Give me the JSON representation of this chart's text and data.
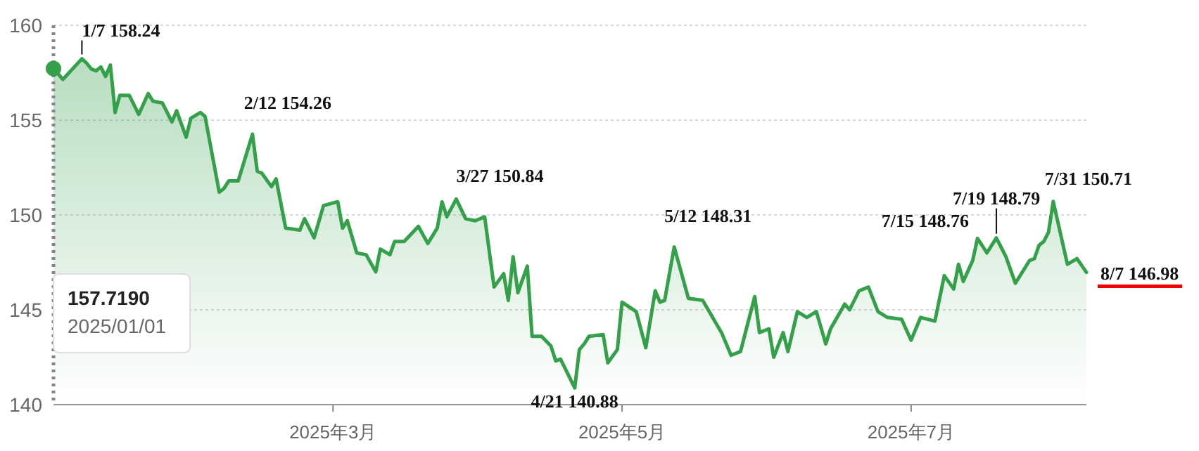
{
  "chart_data": {
    "type": "area",
    "x": [
      "2025-01-01",
      "2025-01-03",
      "2025-01-07",
      "2025-01-08",
      "2025-01-09",
      "2025-01-10",
      "2025-01-11",
      "2025-01-12",
      "2025-01-13",
      "2025-01-14",
      "2025-01-15",
      "2025-01-17",
      "2025-01-19",
      "2025-01-21",
      "2025-01-22",
      "2025-01-24",
      "2025-01-26",
      "2025-01-27",
      "2025-01-29",
      "2025-01-30",
      "2025-02-01",
      "2025-02-02",
      "2025-02-05",
      "2025-02-06",
      "2025-02-07",
      "2025-02-09",
      "2025-02-12",
      "2025-02-13",
      "2025-02-14",
      "2025-02-16",
      "2025-02-17",
      "2025-02-19",
      "2025-02-22",
      "2025-02-23",
      "2025-02-25",
      "2025-02-27",
      "2025-03-02",
      "2025-03-03",
      "2025-03-04",
      "2025-03-06",
      "2025-03-08",
      "2025-03-10",
      "2025-03-11",
      "2025-03-13",
      "2025-03-14",
      "2025-03-16",
      "2025-03-19",
      "2025-03-21",
      "2025-03-23",
      "2025-03-24",
      "2025-03-25",
      "2025-03-27",
      "2025-03-29",
      "2025-03-31",
      "2025-04-02",
      "2025-04-04",
      "2025-04-06",
      "2025-04-07",
      "2025-04-08",
      "2025-04-09",
      "2025-04-11",
      "2025-04-12",
      "2025-04-14",
      "2025-04-16",
      "2025-04-17",
      "2025-04-18",
      "2025-04-21",
      "2025-04-22",
      "2025-04-23",
      "2025-04-24",
      "2025-04-27",
      "2025-04-28",
      "2025-04-30",
      "2025-05-01",
      "2025-05-04",
      "2025-05-06",
      "2025-05-08",
      "2025-05-09",
      "2025-05-10",
      "2025-05-12",
      "2025-05-15",
      "2025-05-18",
      "2025-05-22",
      "2025-05-24",
      "2025-05-26",
      "2025-05-29",
      "2025-05-30",
      "2025-06-01",
      "2025-06-02",
      "2025-06-04",
      "2025-06-05",
      "2025-06-07",
      "2025-06-09",
      "2025-06-11",
      "2025-06-13",
      "2025-06-14",
      "2025-06-17",
      "2025-06-18",
      "2025-06-20",
      "2025-06-22",
      "2025-06-24",
      "2025-06-26",
      "2025-06-29",
      "2025-07-01",
      "2025-07-03",
      "2025-07-06",
      "2025-07-08",
      "2025-07-10",
      "2025-07-11",
      "2025-07-12",
      "2025-07-14",
      "2025-07-15",
      "2025-07-17",
      "2025-07-19",
      "2025-07-21",
      "2025-07-23",
      "2025-07-26",
      "2025-07-27",
      "2025-07-28",
      "2025-07-29",
      "2025-07-30",
      "2025-07-31",
      "2025-08-03",
      "2025-08-05",
      "2025-08-07"
    ],
    "series": [
      {
        "color": "#34a04a",
        "values": [
          157.719,
          157.15,
          158.24,
          158.0,
          157.7,
          157.6,
          157.8,
          157.3,
          157.9,
          155.4,
          156.3,
          156.3,
          155.3,
          156.4,
          156.0,
          155.9,
          154.9,
          155.5,
          154.1,
          155.1,
          155.4,
          155.2,
          151.2,
          151.4,
          151.8,
          151.8,
          154.26,
          152.3,
          152.2,
          151.5,
          151.9,
          149.3,
          149.2,
          149.8,
          148.8,
          150.5,
          150.7,
          149.3,
          149.7,
          148.0,
          147.9,
          147.0,
          148.2,
          147.9,
          148.6,
          148.6,
          149.4,
          148.5,
          149.3,
          150.7,
          149.9,
          150.84,
          149.8,
          149.7,
          149.9,
          146.2,
          146.9,
          145.5,
          147.8,
          145.9,
          147.3,
          143.6,
          143.6,
          143.1,
          142.3,
          142.4,
          140.88,
          142.9,
          143.2,
          143.6,
          143.7,
          142.2,
          142.9,
          145.4,
          144.9,
          143.0,
          146.0,
          145.4,
          145.5,
          148.31,
          145.6,
          145.5,
          143.8,
          142.6,
          142.8,
          145.7,
          143.8,
          144.0,
          142.5,
          143.8,
          142.8,
          144.9,
          144.6,
          144.9,
          143.2,
          144.0,
          145.3,
          145.0,
          146.0,
          146.2,
          144.9,
          144.6,
          144.5,
          143.4,
          144.6,
          144.4,
          146.8,
          146.1,
          147.4,
          146.5,
          147.6,
          148.76,
          148.0,
          148.79,
          147.8,
          146.4,
          147.6,
          147.7,
          148.4,
          148.6,
          149.1,
          150.71,
          147.4,
          147.7,
          146.98
        ]
      }
    ],
    "xlim": [
      "2025-01-01",
      "2025-08-07"
    ],
    "xticks": [
      {
        "value": "2025-03-01",
        "label": "2025年3月"
      },
      {
        "value": "2025-05-01",
        "label": "2025年5月"
      },
      {
        "value": "2025-07-01",
        "label": "2025年7月"
      }
    ],
    "ylim": [
      140,
      160
    ],
    "yticks": [
      140,
      145,
      150,
      155,
      160
    ],
    "grid": "y",
    "ref_lines": [
      {
        "axis": "x",
        "value": "2025-01-01",
        "line_style": "dotted",
        "color": "#8a7f8a"
      }
    ],
    "annotations": [
      "157.7190\n2025/01/01",
      {
        "text": "1/7 158.24",
        "x": "2025-01-07",
        "y": 158.24
      },
      {
        "text": "2/12 154.26",
        "x": "2025-02-12",
        "y": 154.26
      },
      {
        "text": "3/27 150.84",
        "x": "2025-03-27",
        "y": 150.84
      },
      {
        "text": "4/21 140.88",
        "x": "2025-04-21",
        "y": 140.88
      },
      {
        "text": "5/12  148.31",
        "x": "2025-05-12",
        "y": 148.31
      },
      {
        "text": "7/15 148.76",
        "x": "2025-07-15",
        "y": 148.76
      },
      {
        "text": "7/19 148.79",
        "x": "2025-07-19",
        "y": 148.79
      },
      {
        "text": "7/31 150.71",
        "x": "2025-07-31",
        "y": 150.71
      },
      {
        "text": "8/7  146.98",
        "x": "2025-08-07",
        "y": 146.98
      }
    ]
  }
}
